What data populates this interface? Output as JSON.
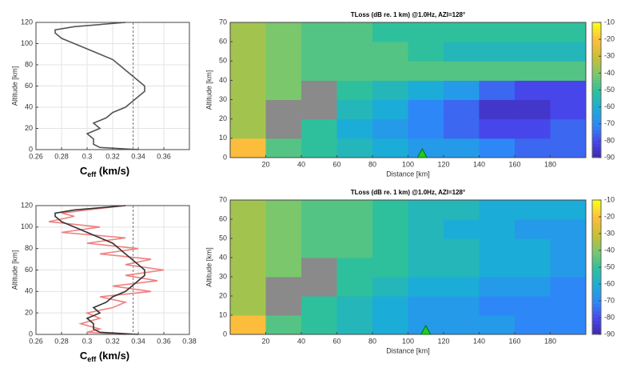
{
  "chart_data": [
    {
      "type": "profile",
      "ylabel": "Altitude [km]",
      "xlabel": {
        "base": "C",
        "sub": "eff",
        "rest": " (km/s)"
      },
      "xlim": [
        0.26,
        0.38
      ],
      "xticks": [
        0.26,
        0.28,
        0.3,
        0.32,
        0.34,
        0.36
      ],
      "ylim": [
        0,
        120
      ],
      "yticks": [
        0,
        20,
        40,
        60,
        80,
        100,
        120
      ],
      "grid": true,
      "vline": 0.336,
      "series": [
        {
          "color": "#555555",
          "y": [
            0,
            2,
            5,
            10,
            15,
            20,
            25,
            30,
            35,
            40,
            45,
            50,
            55,
            60,
            65,
            70,
            75,
            80,
            85,
            90,
            95,
            100,
            105,
            110,
            113,
            116,
            120
          ],
          "x": [
            0.34,
            0.31,
            0.305,
            0.305,
            0.3,
            0.31,
            0.305,
            0.315,
            0.32,
            0.33,
            0.335,
            0.34,
            0.345,
            0.345,
            0.34,
            0.335,
            0.33,
            0.325,
            0.32,
            0.31,
            0.3,
            0.29,
            0.28,
            0.275,
            0.275,
            0.29,
            0.33
          ]
        }
      ]
    },
    {
      "type": "heatmap",
      "title": "TLoss (dB re. 1 km) @1.0Hz, AZI=128°",
      "xlabel": "Distance [km]",
      "ylabel": "Altitude [km]",
      "xlim": [
        0,
        200
      ],
      "xticks": [
        20,
        40,
        60,
        80,
        100,
        120,
        140,
        160,
        180
      ],
      "ylim": [
        0,
        70
      ],
      "yticks": [
        0,
        10,
        20,
        30,
        40,
        50,
        60,
        70
      ],
      "x_edges": [
        0,
        20,
        40,
        60,
        80,
        100,
        120,
        140,
        160,
        180,
        200
      ],
      "y_edges": [
        0,
        10,
        20,
        30,
        40,
        50,
        60,
        70
      ],
      "colormap": "parula",
      "clim": [
        -90,
        -10
      ],
      "cticks": [
        -10,
        -20,
        -30,
        -40,
        -50,
        -60,
        -70,
        -80,
        -90
      ],
      "source_x": 108,
      "values": [
        [
          -20,
          -45,
          -50,
          -55,
          -60,
          -65,
          -65,
          -70,
          -75,
          -75
        ],
        [
          -35,
          null,
          -50,
          -60,
          -65,
          -70,
          -75,
          -80,
          -80,
          -75
        ],
        [
          -35,
          null,
          null,
          -55,
          -60,
          -70,
          -75,
          -85,
          -85,
          -80
        ],
        [
          -35,
          -40,
          null,
          -50,
          -55,
          -60,
          -65,
          -75,
          -80,
          -80
        ],
        [
          -35,
          -40,
          -45,
          -45,
          -45,
          -45,
          -45,
          -45,
          -45,
          -45
        ],
        [
          -35,
          -40,
          -45,
          -45,
          -45,
          -50,
          -55,
          -55,
          -55,
          -55
        ],
        [
          -35,
          -40,
          -45,
          -45,
          -50,
          -50,
          -50,
          -50,
          -50,
          -50
        ]
      ]
    },
    {
      "type": "profile",
      "ylabel": "Altitude [km]",
      "xlabel": {
        "base": "C",
        "sub": "eff",
        "rest": " (km/s)"
      },
      "xlim": [
        0.26,
        0.38
      ],
      "xticks": [
        0.26,
        0.28,
        0.3,
        0.32,
        0.34,
        0.36,
        0.38
      ],
      "ylim": [
        0,
        120
      ],
      "yticks": [
        0,
        20,
        40,
        60,
        80,
        100,
        120
      ],
      "grid": true,
      "vline": 0.336,
      "series": [
        {
          "color": "#f08080",
          "y": [
            0,
            2,
            5,
            10,
            15,
            20,
            25,
            30,
            35,
            40,
            45,
            50,
            55,
            60,
            65,
            70,
            75,
            80,
            85,
            90,
            95,
            100,
            105,
            110,
            113,
            116,
            120
          ],
          "x": [
            0.33,
            0.3,
            0.31,
            0.295,
            0.31,
            0.3,
            0.32,
            0.33,
            0.31,
            0.35,
            0.32,
            0.355,
            0.33,
            0.36,
            0.33,
            0.35,
            0.31,
            0.34,
            0.3,
            0.33,
            0.28,
            0.31,
            0.27,
            0.29,
            0.28,
            0.3,
            0.33
          ]
        },
        {
          "color": "#333333",
          "y": [
            0,
            2,
            5,
            10,
            15,
            20,
            25,
            30,
            35,
            40,
            45,
            50,
            55,
            60,
            65,
            70,
            75,
            80,
            85,
            90,
            95,
            100,
            105,
            110,
            113,
            116,
            120
          ],
          "x": [
            0.34,
            0.31,
            0.305,
            0.305,
            0.3,
            0.31,
            0.305,
            0.315,
            0.32,
            0.33,
            0.335,
            0.34,
            0.345,
            0.345,
            0.34,
            0.335,
            0.33,
            0.325,
            0.32,
            0.31,
            0.3,
            0.29,
            0.28,
            0.275,
            0.275,
            0.29,
            0.33
          ]
        }
      ]
    },
    {
      "type": "heatmap",
      "title": "TLoss (dB re. 1 km) @1.0Hz, AZI=128°",
      "xlabel": "Distance [km]",
      "ylabel": "Altitude [km]",
      "xlim": [
        0,
        200
      ],
      "xticks": [
        20,
        40,
        60,
        80,
        100,
        120,
        140,
        160,
        180
      ],
      "ylim": [
        0,
        70
      ],
      "yticks": [
        0,
        10,
        20,
        30,
        40,
        50,
        60,
        70
      ],
      "x_edges": [
        0,
        20,
        40,
        60,
        80,
        100,
        120,
        140,
        160,
        180,
        200
      ],
      "y_edges": [
        0,
        10,
        20,
        30,
        40,
        50,
        60,
        70
      ],
      "colormap": "parula",
      "clim": [
        -90,
        -10
      ],
      "cticks": [
        -10,
        -20,
        -30,
        -40,
        -50,
        -60,
        -70,
        -80,
        -90
      ],
      "source_x": 110,
      "values": [
        [
          -20,
          -45,
          -50,
          -55,
          -60,
          -65,
          -65,
          -65,
          -70,
          -70
        ],
        [
          -35,
          null,
          -50,
          -55,
          -60,
          -65,
          -65,
          -70,
          -70,
          -70
        ],
        [
          -35,
          null,
          null,
          -50,
          -55,
          -60,
          -60,
          -65,
          -65,
          -70
        ],
        [
          -35,
          -40,
          null,
          -50,
          -50,
          -55,
          -55,
          -60,
          -60,
          -65
        ],
        [
          -35,
          -40,
          -45,
          -45,
          -50,
          -55,
          -55,
          -60,
          -60,
          -65
        ],
        [
          -35,
          -40,
          -45,
          -45,
          -50,
          -55,
          -60,
          -60,
          -65,
          -65
        ],
        [
          -35,
          -40,
          -45,
          -45,
          -50,
          -55,
          -55,
          -60,
          -60,
          -60
        ]
      ]
    }
  ]
}
